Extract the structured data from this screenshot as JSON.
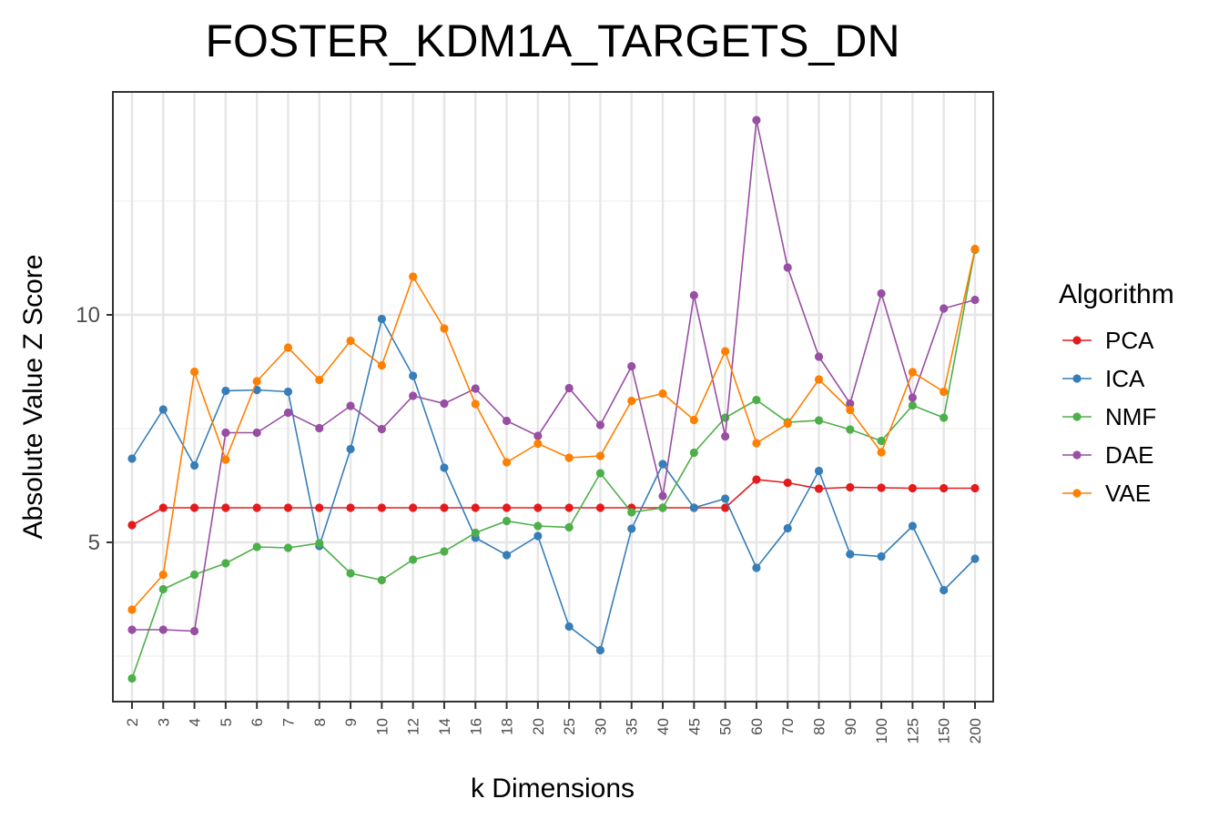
{
  "chart_data": {
    "type": "line",
    "title": "FOSTER_KDM1A_TARGETS_DN",
    "xlabel": "k Dimensions",
    "ylabel": "Absolute Value Z Score",
    "categories": [
      "2",
      "3",
      "4",
      "5",
      "6",
      "7",
      "8",
      "9",
      "10",
      "12",
      "14",
      "16",
      "18",
      "20",
      "25",
      "30",
      "35",
      "40",
      "45",
      "50",
      "60",
      "70",
      "80",
      "90",
      "100",
      "125",
      "150",
      "200"
    ],
    "ylim": [
      1.5,
      14.9
    ],
    "yticks": [
      5,
      10
    ],
    "grid": true,
    "legend": {
      "title": "Algorithm",
      "position": "right"
    },
    "series": [
      {
        "name": "PCA",
        "color": "#e41a1c",
        "values": [
          5.38,
          5.76,
          5.76,
          5.76,
          5.76,
          5.76,
          5.76,
          5.76,
          5.76,
          5.76,
          5.76,
          5.76,
          5.76,
          5.76,
          5.76,
          5.76,
          5.76,
          5.76,
          5.76,
          5.76,
          6.38,
          6.31,
          6.18,
          6.21,
          6.2,
          6.19,
          6.19,
          6.19
        ]
      },
      {
        "name": "ICA",
        "color": "#377eb8",
        "values": [
          6.84,
          7.92,
          6.69,
          8.33,
          8.35,
          8.31,
          4.92,
          7.05,
          9.91,
          8.66,
          6.64,
          5.1,
          4.72,
          5.14,
          3.15,
          2.63,
          5.3,
          6.72,
          5.76,
          5.96,
          4.44,
          5.31,
          6.57,
          4.74,
          4.69,
          5.36,
          3.95,
          4.64
        ]
      },
      {
        "name": "NMF",
        "color": "#4daf4a",
        "values": [
          2.01,
          3.97,
          4.29,
          4.54,
          4.9,
          4.88,
          4.98,
          4.32,
          4.17,
          4.62,
          4.8,
          5.21,
          5.47,
          5.36,
          5.33,
          6.52,
          5.66,
          5.76,
          6.97,
          7.74,
          8.13,
          7.64,
          7.68,
          7.48,
          7.23,
          8.01,
          7.74,
          11.43
        ]
      },
      {
        "name": "DAE",
        "color": "#984ea3",
        "values": [
          3.08,
          3.08,
          3.05,
          7.41,
          7.41,
          7.85,
          7.51,
          8.0,
          7.49,
          8.22,
          8.05,
          8.38,
          7.67,
          7.34,
          8.39,
          7.58,
          8.87,
          6.02,
          10.43,
          7.33,
          14.28,
          11.04,
          9.08,
          8.05,
          10.47,
          8.18,
          10.14,
          10.33
        ]
      },
      {
        "name": "VAE",
        "color": "#ff7f00",
        "values": [
          3.52,
          4.29,
          8.75,
          6.82,
          8.54,
          9.28,
          8.57,
          9.43,
          8.89,
          10.84,
          9.7,
          8.04,
          6.76,
          7.17,
          6.86,
          6.9,
          8.11,
          8.27,
          7.69,
          9.2,
          7.18,
          7.61,
          8.58,
          7.91,
          6.98,
          8.74,
          8.31,
          11.45
        ]
      }
    ]
  }
}
